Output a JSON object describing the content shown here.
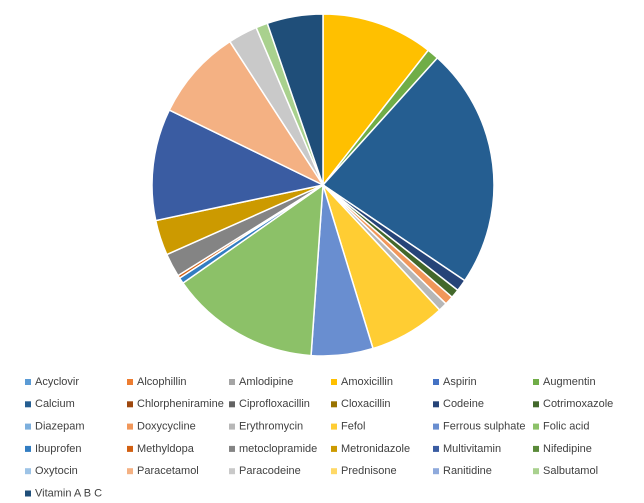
{
  "chart_data": {
    "type": "pie",
    "categories": [
      "Acyclovir",
      "Alcophillin",
      "Amlodipine",
      "Amoxicillin",
      "Aspirin",
      "Augmentin",
      "Calcium",
      "Chlorpheniramine",
      "Ciprofloxacillin",
      "Cloxacillin",
      "Codeine",
      "Cotrimoxazole",
      "Diazepam",
      "Doxycycline",
      "Erythromycin",
      "Fefol",
      "Ferrous sulphate",
      "Folic acid",
      "Ibuprofen",
      "Methyldopa",
      "metoclopramide",
      "Metronidazole",
      "Multivitamin",
      "Nifedipine",
      "Oxytocin",
      "Paracetamol",
      "Paracodeine",
      "Prednisone",
      "Ranitidine",
      "Salbutamol",
      "Vitamin A B C"
    ],
    "values": [
      0,
      0,
      0,
      38,
      0,
      4,
      82,
      0,
      0,
      0,
      4,
      3,
      0,
      3,
      3,
      26,
      21,
      51,
      2,
      1,
      8,
      12,
      38,
      0,
      0,
      31,
      10,
      0,
      0,
      4,
      19
    ],
    "colors": [
      "#5b9bd5",
      "#ed7d31",
      "#a5a5a5",
      "#ffc000",
      "#4472c4",
      "#70ad47",
      "#255e91",
      "#9e480e",
      "#636363",
      "#997300",
      "#264478",
      "#43682b",
      "#7cafdd",
      "#f1975a",
      "#b7b7b7",
      "#ffcd33",
      "#698ed0",
      "#8cc168",
      "#327dc2",
      "#d26012",
      "#848484",
      "#cc9a00",
      "#3a5ca2",
      "#5a8a39",
      "#9dc3e6",
      "#f4b183",
      "#c9c9c9",
      "#ffd966",
      "#8faadc",
      "#a9d18e",
      "#1f4e79"
    ],
    "legend": "bottom"
  }
}
